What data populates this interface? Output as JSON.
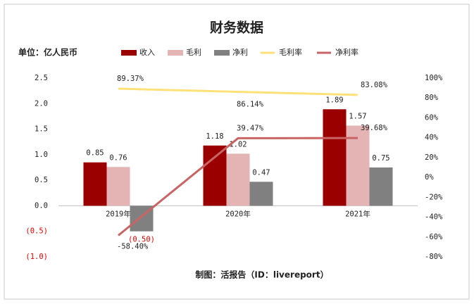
{
  "chart_data": {
    "type": "bar",
    "title": "财务数据",
    "subtitle": "单位：亿人民币",
    "source": "制图：活报告（ID：livereport）",
    "categories": [
      "2019年",
      "2020年",
      "2021年"
    ],
    "series": [
      {
        "name": "收入",
        "color": "#9b0000",
        "values": [
          0.85,
          1.18,
          1.89
        ]
      },
      {
        "name": "毛利",
        "color": "#e4b3b3",
        "values": [
          0.76,
          1.02,
          1.57
        ]
      },
      {
        "name": "净利",
        "color": "#808080",
        "values": [
          -0.5,
          0.47,
          0.75
        ],
        "value_labels": [
          "(0.50)",
          "0.47",
          "0.75"
        ]
      },
      {
        "name": "毛利率",
        "type": "line",
        "axis": "y2",
        "color": "#ffe17a",
        "values": [
          89.37,
          86.14,
          83.08
        ],
        "value_labels": [
          "89.37%",
          "86.14%",
          "83.08%"
        ]
      },
      {
        "name": "净利率",
        "type": "line",
        "axis": "y2",
        "color": "#c96464",
        "values": [
          -58.4,
          39.47,
          39.68
        ],
        "value_labels": [
          "-58.40%",
          "39.47%",
          "39.68%"
        ]
      }
    ],
    "ylim": [
      -1,
      2.5
    ],
    "yticks": [
      {
        "value": -1,
        "label": "(1.0)"
      },
      {
        "value": -0.5,
        "label": "(0.5)"
      },
      {
        "value": 0,
        "label": "0.0"
      },
      0.5,
      {
        "value": 1,
        "label": "1.0"
      },
      1.5,
      {
        "value": 2,
        "label": "2.0"
      },
      2.5
    ],
    "y2lim": [
      -80,
      100
    ],
    "y2ticks": [
      {
        "value": -80,
        "label": "-80%"
      },
      {
        "value": -60,
        "label": "-60%"
      },
      {
        "value": -40,
        "label": "-40%"
      },
      {
        "value": -20,
        "label": "-20%"
      },
      {
        "value": 0,
        "label": "0%"
      },
      {
        "value": 20,
        "label": "20%"
      },
      {
        "value": 40,
        "label": "40%"
      },
      {
        "value": 60,
        "label": "60%"
      },
      {
        "value": 80,
        "label": "80%"
      },
      {
        "value": 100,
        "label": "100%"
      }
    ],
    "legend": "top"
  }
}
